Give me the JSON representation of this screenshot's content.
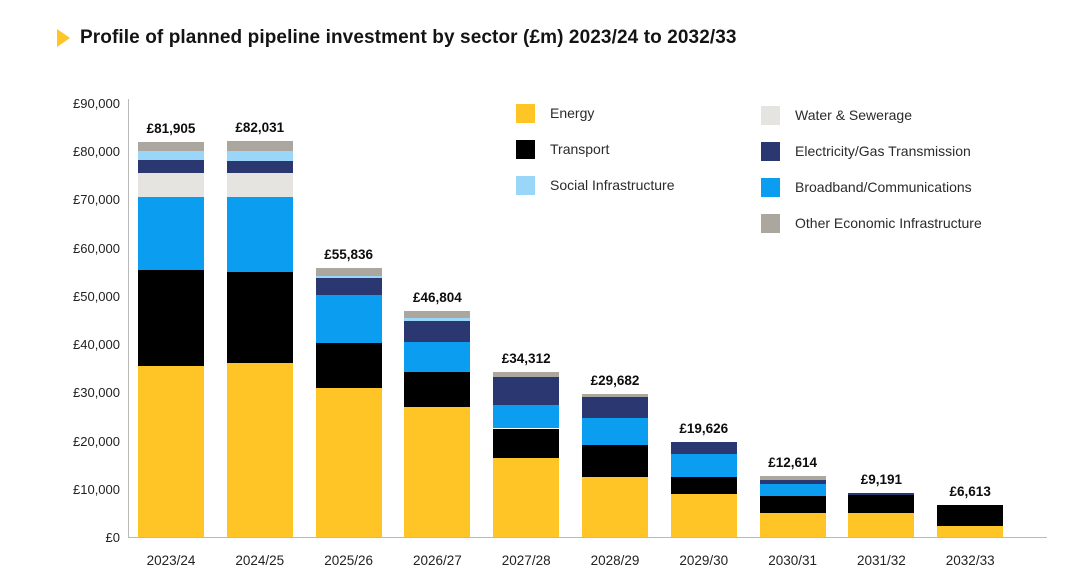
{
  "title": {
    "arrow_icon": "right-triangle",
    "text": "Profile of planned pipeline investment by sector (£m) 2023/24 to 2032/33"
  },
  "colors": {
    "accent_yellow": "#FFC425",
    "title_text": "#141414",
    "axis_line": "#B9B9B9",
    "label_text": "#222222"
  },
  "chart_data": {
    "type": "bar",
    "subtype": "stacked-vertical",
    "title": "Profile of planned pipeline investment by sector (£m) 2023/24 to 2032/33",
    "xlabel": "",
    "ylabel": "",
    "grid": false,
    "categories": [
      "2023/24",
      "2024/25",
      "2025/26",
      "2026/27",
      "2027/28",
      "2028/29",
      "2029/30",
      "2030/31",
      "2031/32",
      "2032/33"
    ],
    "series": [
      {
        "name": "Energy",
        "color": "#FFC425",
        "values": [
          35500,
          36100,
          30800,
          26900,
          16300,
          12400,
          9000,
          4900,
          4940,
          2200
        ]
      },
      {
        "name": "Transport",
        "color": "#000000",
        "values": [
          19800,
          18900,
          9500,
          7400,
          6200,
          6700,
          3500,
          3650,
          3750,
          4413
        ]
      },
      {
        "name": "Broadband/Communications",
        "color": "#0B9DEF",
        "values": [
          15300,
          15550,
          9900,
          6100,
          4800,
          5500,
          4700,
          2360,
          0,
          0
        ]
      },
      {
        "name": "Water & Sewerage",
        "color": "#E5E4E1",
        "values": [
          4900,
          5000,
          0,
          0,
          0,
          0,
          0,
          0,
          0,
          0
        ]
      },
      {
        "name": "Electricity/Gas Transmission",
        "color": "#2B3770",
        "values": [
          2600,
          2450,
          3500,
          4300,
          5800,
          4500,
          2426,
          900,
          501,
          0
        ]
      },
      {
        "name": "Social Infrastructure",
        "color": "#9AD6F8",
        "values": [
          1905,
          1951,
          496,
          704,
          0,
          0,
          0,
          0,
          0,
          0
        ]
      },
      {
        "name": "Other Economic Infrastructure",
        "color": "#ABA69E",
        "values": [
          1900,
          2080,
          1640,
          1400,
          1212,
          582,
          0,
          804,
          0,
          0
        ]
      }
    ],
    "totals": [
      81905,
      82031,
      55836,
      46804,
      34312,
      29682,
      19626,
      12614,
      9191,
      6613
    ],
    "total_labels": [
      "£81,905",
      "£82,031",
      "£55,836",
      "£46,804",
      "£34,312",
      "£29,682",
      "£19,626",
      "£12,614",
      "£9,191",
      "£6,613"
    ],
    "y_axis": {
      "min": 0,
      "max": 90000,
      "tick_step": 10000,
      "tick_labels": [
        "£0",
        "£10,000",
        "£20,000",
        "£30,000",
        "£40,000",
        "£50,000",
        "£60,000",
        "£70,000",
        "£80,000",
        "£90,000"
      ]
    },
    "legend": {
      "position": "top-right",
      "columns": [
        [
          "Energy",
          "Transport",
          "Social Infrastructure"
        ],
        [
          "Water & Sewerage",
          "Electricity/Gas Transmission",
          "Broadband/Communications",
          "Other Economic Infrastructure"
        ]
      ]
    }
  }
}
